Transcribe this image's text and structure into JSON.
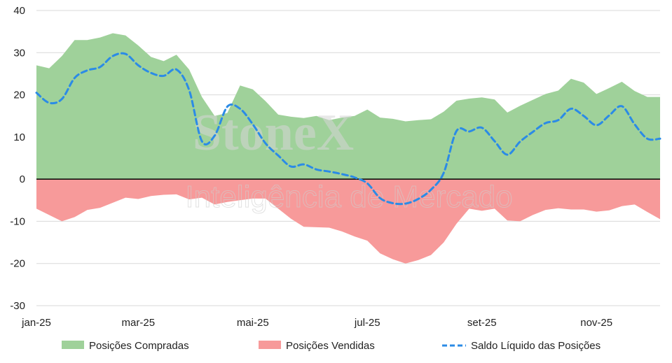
{
  "watermark": {
    "brand": "StoneX",
    "tagline": "Inteligência de Mercado"
  },
  "colors": {
    "compradas": "#9fd19a",
    "vendidas": "#f79a9a",
    "saldo": "#2b8be6",
    "grid": "#d9d9d9"
  },
  "chart_data": {
    "type": "area",
    "title": "",
    "xlabel": "",
    "ylabel": "",
    "ylim": [
      -30,
      40
    ],
    "y_ticks": [
      -30,
      -20,
      -10,
      0,
      10,
      20,
      30,
      40
    ],
    "grid": true,
    "legend_position": "bottom",
    "x_tick_labels": [
      "jan-25",
      "mar-25",
      "mai-25",
      "jul-25",
      "set-25",
      "nov-25"
    ],
    "x_tick_index": [
      0,
      8,
      17,
      26,
      35,
      44
    ],
    "x": [
      "1",
      "2",
      "3",
      "4",
      "5",
      "6",
      "7",
      "8",
      "9",
      "10",
      "11",
      "12",
      "13",
      "14",
      "15",
      "16",
      "17",
      "18",
      "19",
      "20",
      "21",
      "22",
      "23",
      "24",
      "25",
      "26",
      "27",
      "28",
      "29",
      "30",
      "31",
      "32",
      "33",
      "34",
      "35",
      "36",
      "37",
      "38",
      "39",
      "40",
      "41",
      "42",
      "43",
      "44",
      "45",
      "46",
      "47",
      "48",
      "49",
      "50"
    ],
    "series": [
      {
        "name": "Posições Compradas",
        "style": "area",
        "values": [
          27,
          26.3,
          29.2,
          33,
          33,
          33.6,
          34.6,
          34.1,
          31.7,
          29,
          28,
          29.5,
          26,
          19.5,
          15,
          15.7,
          22.2,
          21.3,
          18.5,
          15.3,
          14.8,
          14.5,
          15,
          14,
          14.6,
          15,
          16.5,
          14.6,
          14.3,
          13.7,
          14,
          14.2,
          16,
          18.6,
          19.1,
          19.4,
          18.9,
          15.8,
          17.4,
          18.8,
          20.2,
          21,
          23.8,
          22.9,
          20.2,
          21.6,
          23.1,
          20.9,
          19.5,
          19.5
        ]
      },
      {
        "name": "Posições Vendidas",
        "style": "area",
        "values": [
          -7,
          -8.5,
          -10,
          -9,
          -7.3,
          -6.8,
          -5.6,
          -4.4,
          -4.7,
          -4,
          -3.7,
          -3.6,
          -4.8,
          -4.4,
          -6,
          -5.4,
          -5,
          -4.6,
          -4.6,
          -7,
          -9.4,
          -11.3,
          -11.4,
          -11.5,
          -12.4,
          -13.6,
          -14.6,
          -17.6,
          -19,
          -20,
          -19.2,
          -18,
          -15,
          -10.6,
          -7,
          -7.5,
          -7,
          -9.8,
          -10,
          -8.5,
          -7.3,
          -6.9,
          -7.2,
          -7.2,
          -7.7,
          -7.4,
          -6.4,
          -6,
          -7.8,
          -9.5
        ]
      },
      {
        "name": "Saldo Líquido das Posições",
        "style": "dashed-line",
        "values": [
          20.5,
          18.1,
          19,
          24,
          25.8,
          26.6,
          29.2,
          29.7,
          27,
          25.2,
          24.5,
          26,
          21.1,
          9,
          10.3,
          17.2,
          16.7,
          13,
          8.5,
          5.6,
          3,
          3.5,
          2.3,
          1.8,
          1.2,
          0.4,
          -1,
          -4.5,
          -5.7,
          -5.8,
          -4.7,
          -2.5,
          1.5,
          11.4,
          11.3,
          12.2,
          9,
          5.8,
          8.9,
          11.2,
          13.3,
          14,
          16.7,
          15,
          12.8,
          15.1,
          17.3,
          13,
          9.6,
          9.6
        ]
      }
    ]
  }
}
